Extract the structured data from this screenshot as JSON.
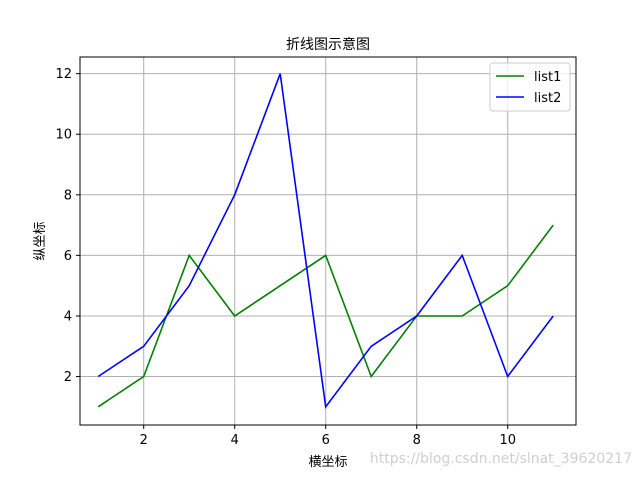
{
  "chart_data": {
    "type": "line",
    "title": "折线图示意图",
    "xlabel": "横坐标",
    "ylabel": "纵坐标",
    "xlim": [
      0.6,
      11.5
    ],
    "ylim": [
      0.4,
      12.55
    ],
    "x_ticks": [
      2,
      4,
      6,
      8,
      10
    ],
    "y_ticks": [
      2,
      4,
      6,
      8,
      10,
      12
    ],
    "grid": true,
    "legend_position": "top-right",
    "x": [
      1,
      2,
      3,
      4,
      5,
      6,
      7,
      8,
      9,
      10,
      11
    ],
    "series": [
      {
        "name": "list1",
        "color": "#008000",
        "values": [
          1,
          2,
          6,
          4,
          5,
          6,
          2,
          4,
          4,
          5,
          7
        ]
      },
      {
        "name": "list2",
        "color": "#0000ff",
        "values": [
          2,
          3,
          5,
          8,
          12,
          1,
          3,
          4,
          6,
          2,
          4
        ]
      }
    ]
  },
  "watermark": "https://blog.csdn.net/slnat_39620217"
}
